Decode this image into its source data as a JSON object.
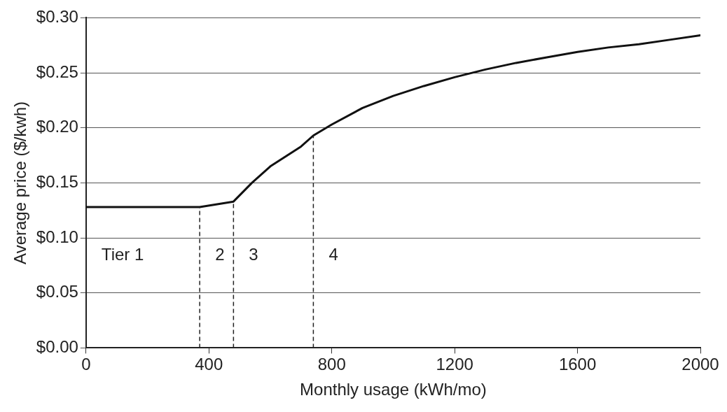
{
  "chart_data": {
    "type": "line",
    "xlabel": "Monthly usage (kWh/mo)",
    "ylabel": "Average price ($/kwh)",
    "x": [
      0,
      100,
      200,
      300,
      370,
      480,
      540,
      600,
      700,
      740,
      800,
      900,
      1000,
      1100,
      1200,
      1300,
      1400,
      1500,
      1600,
      1700,
      1800,
      1900,
      2000
    ],
    "series": [
      {
        "color": "#111111",
        "values": [
          0.128,
          0.128,
          0.128,
          0.128,
          0.128,
          0.133,
          0.15,
          0.165,
          0.183,
          0.193,
          0.203,
          0.218,
          0.229,
          0.238,
          0.246,
          0.253,
          0.259,
          0.264,
          0.269,
          0.273,
          0.276,
          0.28,
          0.284
        ]
      }
    ],
    "xlim": [
      0,
      2000
    ],
    "xticks": [
      0,
      400,
      800,
      1200,
      1600,
      2000
    ],
    "ylim": [
      0,
      0.3
    ],
    "yticks": [
      {
        "value": 0,
        "label": "$0.00"
      },
      {
        "value": 0.05,
        "label": "$0.05"
      },
      {
        "value": 0.1,
        "label": "$0.10"
      },
      {
        "value": 0.15,
        "label": "$0.15"
      },
      {
        "value": 0.2,
        "label": "$0.20"
      },
      {
        "value": 0.25,
        "label": "$0.25"
      },
      {
        "value": 0.3,
        "label": "$0.30"
      }
    ],
    "ref_lines": [
      {
        "axis": "x",
        "value": 370,
        "line_style": "dashed",
        "color": "#222222"
      },
      {
        "axis": "x",
        "value": 480,
        "line_style": "dashed",
        "color": "#222222"
      },
      {
        "axis": "x",
        "value": 740,
        "line_style": "dashed",
        "color": "#222222"
      }
    ],
    "annotations": [
      "Tier 1",
      "2",
      "3",
      "4"
    ],
    "grid": "y",
    "legend": false,
    "marker": "none",
    "line_style": "solid"
  }
}
